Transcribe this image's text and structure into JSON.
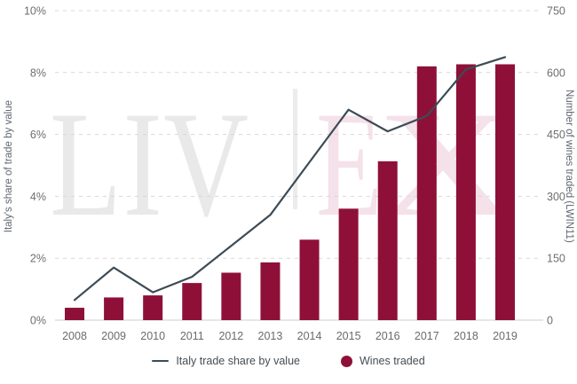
{
  "chart_data": {
    "type": "combo-bar-line",
    "categories": [
      "2008",
      "2009",
      "2010",
      "2011",
      "2012",
      "2013",
      "2014",
      "2015",
      "2016",
      "2017",
      "2018",
      "2019"
    ],
    "series": [
      {
        "name": "Italy trade share by value",
        "type": "line",
        "axis": "left",
        "color": "#3d4b55",
        "values": [
          0.65,
          1.7,
          0.9,
          1.4,
          2.4,
          3.4,
          5.1,
          6.8,
          6.1,
          6.6,
          8.1,
          8.5
        ]
      },
      {
        "name": "Wines traded",
        "type": "bar",
        "axis": "right",
        "color": "#8e1038",
        "values": [
          30,
          55,
          60,
          90,
          115,
          140,
          195,
          270,
          385,
          615,
          620,
          620
        ]
      }
    ],
    "left_axis": {
      "title": "Italy's share of trade by value",
      "min": 0,
      "max": 10,
      "ticks": [
        "0%",
        "2%",
        "4%",
        "6%",
        "8%",
        "10%"
      ]
    },
    "right_axis": {
      "title": "Number of wines traded (LWIN11)",
      "min": 0,
      "max": 750,
      "ticks": [
        "0",
        "150",
        "300",
        "450",
        "600",
        "750"
      ]
    },
    "grid": "horizontal-dashed",
    "legend_position": "bottom"
  },
  "legend": {
    "line_label": "Italy trade share by value",
    "bar_label": "Wines traded"
  },
  "watermark": {
    "liv": "LIV",
    "e": "E",
    "x": "X"
  },
  "colors": {
    "bar": "#8e1038",
    "line": "#3d4b55",
    "grid": "#d7d7d7",
    "baseline": "#cfdbe2",
    "tick_text": "#6e6e6e",
    "year_text": "#6b6b6b"
  }
}
